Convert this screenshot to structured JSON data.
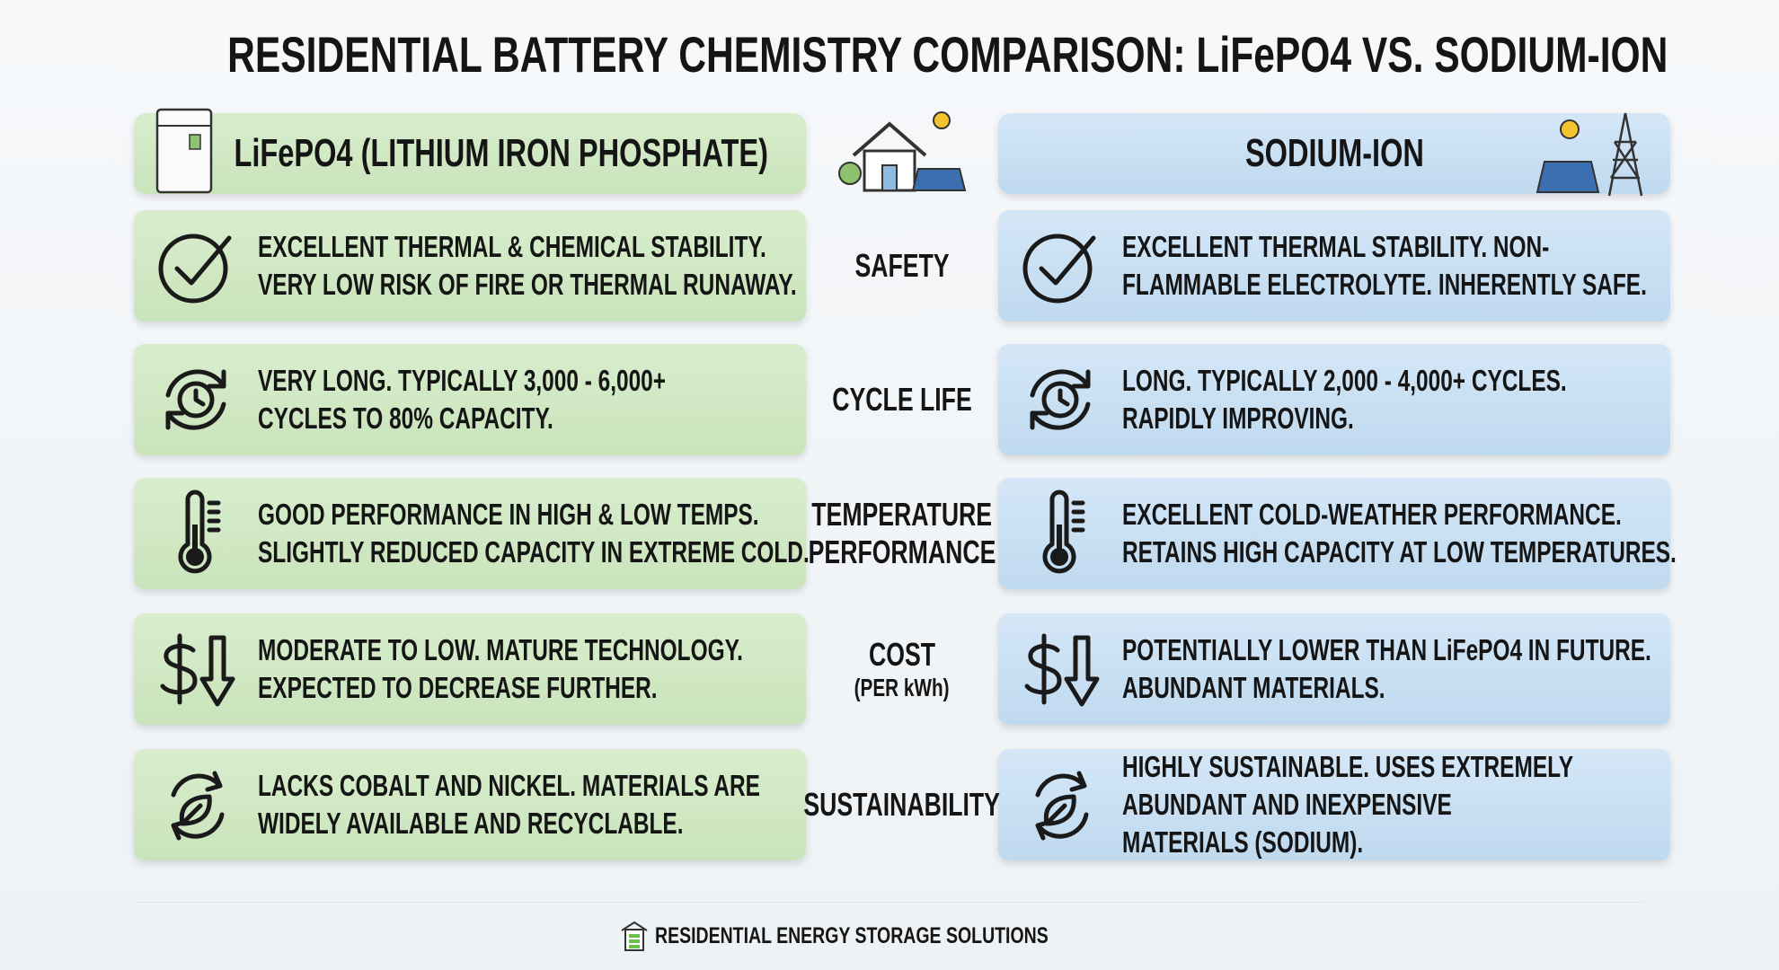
{
  "title": "RESIDENTIAL BATTERY CHEMISTRY COMPARISON: LiFePO4 VS. SODIUM-ION",
  "columns": [
    "LiFePO4 (LITHIUM IRON PHOSPHATE)",
    "SODIUM-ION"
  ],
  "rows": [
    {
      "label": [
        "SAFETY"
      ],
      "left": [
        "EXCELLENT THERMAL & CHEMICAL STABILITY.",
        "VERY LOW RISK OF FIRE OR THERMAL RUNAWAY."
      ],
      "right": [
        "EXCELLENT THERMAL STABILITY. NON-",
        "FLAMMABLE ELECTROLYTE. INHERENTLY SAFE."
      ]
    },
    {
      "label": [
        "CYCLE LIFE"
      ],
      "left": [
        "VERY LONG. TYPICALLY 3,000 - 6,000+",
        "CYCLES TO 80% CAPACITY."
      ],
      "right": [
        "LONG. TYPICALLY 2,000 - 4,000+ CYCLES.",
        "RAPIDLY IMPROVING."
      ]
    },
    {
      "label": [
        "TEMPERATURE",
        "PERFORMANCE"
      ],
      "left": [
        "GOOD PERFORMANCE IN HIGH & LOW TEMPS.",
        "SLIGHTLY REDUCED CAPACITY IN EXTREME COLD."
      ],
      "right": [
        "EXCELLENT COLD-WEATHER PERFORMANCE.",
        "RETAINS HIGH CAPACITY AT LOW TEMPERATURES."
      ]
    },
    {
      "label": [
        "COST"
      ],
      "sublabel": "(PER kWh)",
      "left": [
        "MODERATE TO LOW. MATURE TECHNOLOGY.",
        "EXPECTED TO DECREASE FURTHER."
      ],
      "right": [
        "POTENTIALLY LOWER THAN LiFePO4 IN FUTURE.",
        "ABUNDANT MATERIALS."
      ]
    },
    {
      "label": [
        "SUSTAINABILITY"
      ],
      "left": [
        "LACKS COBALT AND NICKEL. MATERIALS ARE",
        "WIDELY AVAILABLE AND RECYCLABLE."
      ],
      "right": [
        "HIGHLY SUSTAINABLE. USES EXTREMELY",
        "ABUNDANT AND INEXPENSIVE",
        "MATERIALS (SODIUM)."
      ]
    }
  ],
  "footer": "RESIDENTIAL ENERGY STORAGE SOLUTIONS"
}
